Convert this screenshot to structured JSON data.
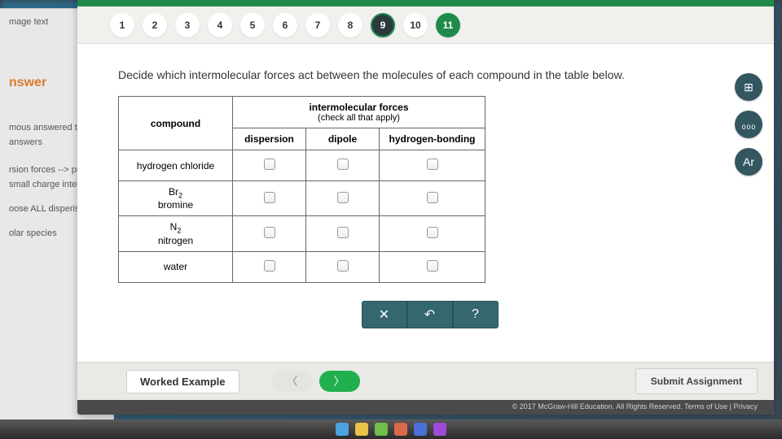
{
  "nav": {
    "items": [
      {
        "label": "1",
        "state": "default"
      },
      {
        "label": "2",
        "state": "default"
      },
      {
        "label": "3",
        "state": "default"
      },
      {
        "label": "4",
        "state": "default"
      },
      {
        "label": "5",
        "state": "default"
      },
      {
        "label": "6",
        "state": "default"
      },
      {
        "label": "7",
        "state": "default"
      },
      {
        "label": "8",
        "state": "default"
      },
      {
        "label": "9",
        "state": "current"
      },
      {
        "label": "10",
        "state": "default"
      },
      {
        "label": "11",
        "state": "done"
      }
    ]
  },
  "question": {
    "prompt": "Decide which intermolecular forces act between the molecules of each compound in the table below.",
    "table": {
      "header_compound": "compound",
      "header_forces": "intermolecular forces",
      "header_forces_sub": "(check all that apply)",
      "cols": [
        "dispersion",
        "dipole",
        "hydrogen-bonding"
      ],
      "rows": [
        {
          "label_html": "hydrogen chloride",
          "formula": ""
        },
        {
          "label_html": "bromine",
          "formula": "Br₂"
        },
        {
          "label_html": "nitrogen",
          "formula": "N₂"
        },
        {
          "label_html": "water",
          "formula": ""
        }
      ]
    }
  },
  "side_tools": {
    "calc": "⊞",
    "stats": "₀₀₀",
    "periodic": "Ar"
  },
  "actions": {
    "clear": "✕",
    "undo": "↶",
    "help": "?"
  },
  "footer": {
    "worked_example": "Worked Example",
    "prev": "〈",
    "next": "〉",
    "submit": "Submit Assignment",
    "copyright": "© 2017 McGraw-Hill Education. All Rights Reserved.   Terms of Use  |  Privacy"
  },
  "back_sheet": {
    "t1": "mage text",
    "answer": "nswer",
    "t2": "mous answered this",
    "t3": " answers",
    "t4": "rsion forces --> pr",
    "t5": "small charge inter",
    "t6": "oose ALL disperis",
    "t7": "olar species"
  },
  "colors": {
    "brand_green": "#1f8a4a",
    "nav_current": "#2b3a3f",
    "teal": "#34676e"
  }
}
